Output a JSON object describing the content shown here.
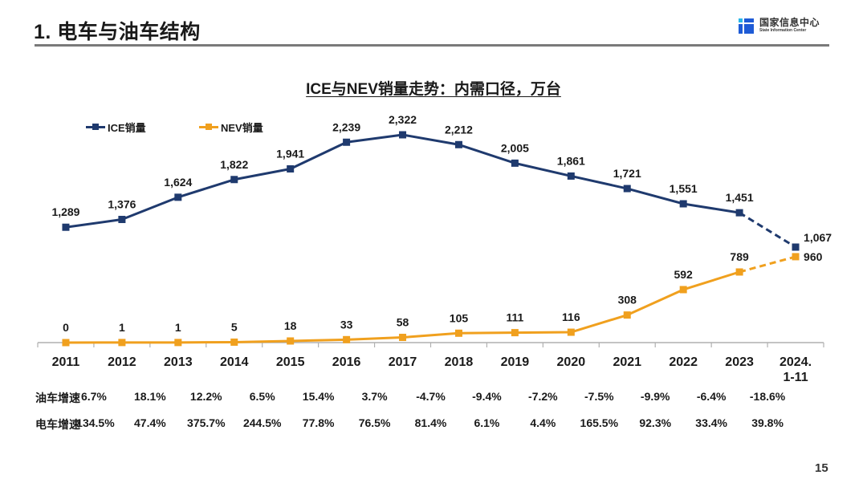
{
  "header": {
    "title": "1. 电车与油车结构",
    "logo_cn": "国家信息中心",
    "logo_en": "State Information Center"
  },
  "page_number": "15",
  "colors": {
    "ice": "#1f3a6e",
    "nev": "#f0a01e",
    "axis": "#b0b0b0"
  },
  "chart_data": {
    "type": "line",
    "title": "ICE与NEV销量走势：内需口径，万台",
    "xlabel": "",
    "ylabel": "",
    "categories": [
      "2011",
      "2012",
      "2013",
      "2014",
      "2015",
      "2016",
      "2017",
      "2018",
      "2019",
      "2020",
      "2021",
      "2022",
      "2023",
      "2024.\n1-11"
    ],
    "category_lines": [
      [
        "2011"
      ],
      [
        "2012"
      ],
      [
        "2013"
      ],
      [
        "2014"
      ],
      [
        "2015"
      ],
      [
        "2016"
      ],
      [
        "2017"
      ],
      [
        "2018"
      ],
      [
        "2019"
      ],
      [
        "2020"
      ],
      [
        "2021"
      ],
      [
        "2022"
      ],
      [
        "2023"
      ],
      [
        "2024.",
        "1-11"
      ]
    ],
    "ylim": [
      0,
      2322
    ],
    "grid": false,
    "legend_position": "top-left",
    "series": [
      {
        "name": "ICE销量",
        "values": [
          1289,
          1376,
          1624,
          1822,
          1941,
          2239,
          2322,
          2212,
          2005,
          1861,
          1721,
          1551,
          1451,
          1067
        ],
        "labels": [
          "1,289",
          "1,376",
          "1,624",
          "1,822",
          "1,941",
          "2,239",
          "2,322",
          "2,212",
          "2,005",
          "1,861",
          "1,721",
          "1,551",
          "1,451",
          "1,067"
        ],
        "last_segment_dashed": true
      },
      {
        "name": "NEV销量",
        "values": [
          0,
          1,
          1,
          5,
          18,
          33,
          58,
          105,
          111,
          116,
          308,
          592,
          789,
          960
        ],
        "labels": [
          "0",
          "1",
          "1",
          "5",
          "18",
          "33",
          "58",
          "105",
          "111",
          "116",
          "308",
          "592",
          "789",
          "960"
        ],
        "last_segment_dashed": true
      }
    ],
    "table_rows": [
      {
        "label": "油车增速",
        "values": [
          "6.7%",
          "18.1%",
          "12.2%",
          "6.5%",
          "15.4%",
          "3.7%",
          "-4.7%",
          "-9.4%",
          "-7.2%",
          "-7.5%",
          "-9.9%",
          "-6.4%",
          "-18.6%"
        ]
      },
      {
        "label": "电车增速",
        "values": [
          "134.5%",
          "47.4%",
          "375.7%",
          "244.5%",
          "77.8%",
          "76.5%",
          "81.4%",
          "6.1%",
          "4.4%",
          "165.5%",
          "92.3%",
          "33.4%",
          "39.8%"
        ]
      }
    ]
  }
}
